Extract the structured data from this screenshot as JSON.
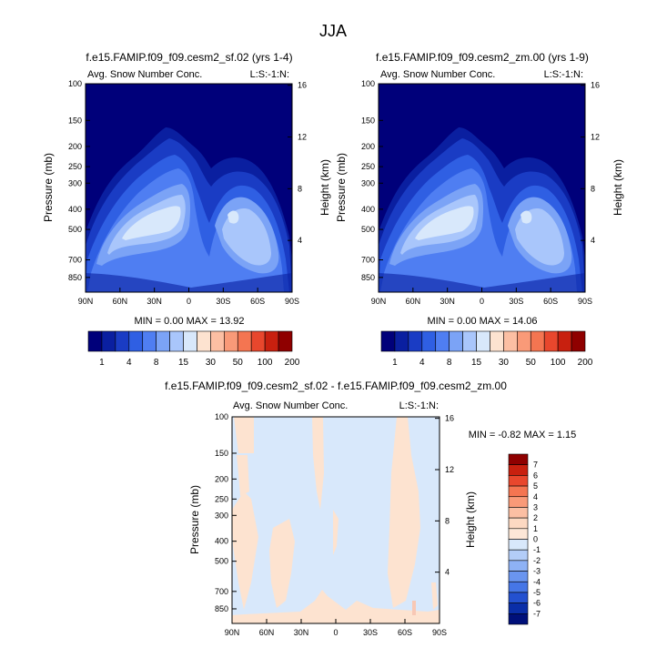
{
  "figure": {
    "title": "JJA"
  },
  "panels": [
    {
      "title": "f.e15.FAMIP.f09_f09.cesm2_sf.02 (yrs 1-4)",
      "field_label": "Avg. Snow Number Conc.",
      "corner_label": "L:S:-1:N:",
      "ylabel": "Pressure (mb)",
      "ylabel_right": "Height (km)",
      "stats": "MIN =  0.00  MAX = 13.92"
    },
    {
      "title": "f.e15.FAMIP.f09_f09.cesm2_zm.00 (yrs 1-9)",
      "field_label": "Avg. Snow Number Conc.",
      "corner_label": "L:S:-1:N:",
      "ylabel": "Pressure (mb)",
      "ylabel_right": "Height (km)",
      "stats": "MIN =  0.00  MAX = 14.06"
    },
    {
      "title": "f.e15.FAMIP.f09_f09.cesm2_sf.02 - f.e15.FAMIP.f09_f09.cesm2_zm.00",
      "field_label": "Avg. Snow Number Conc.",
      "corner_label": "L:S:-1:N:",
      "ylabel": "Pressure (mb)",
      "ylabel_right": "Height (km)",
      "stats": "MIN = -0.82  MAX =  1.15"
    }
  ],
  "axes": {
    "x_ticks": [
      "90N",
      "60N",
      "30N",
      "0",
      "30S",
      "60S",
      "90S"
    ],
    "y_ticks": [
      "100",
      "150",
      "200",
      "250",
      "300",
      "400",
      "500",
      "700",
      "850"
    ],
    "y_tick_values": [
      100,
      150,
      200,
      250,
      300,
      400,
      500,
      700,
      850
    ],
    "height_ticks": [
      "16",
      "12",
      "8",
      "4"
    ],
    "height_tick_values": [
      16,
      12,
      8,
      4
    ],
    "y_log_scale": true,
    "ylim": [
      100,
      1000
    ]
  },
  "colorbar_top": {
    "labels": [
      "1",
      "4",
      "8",
      "15",
      "30",
      "50",
      "100",
      "200"
    ],
    "colors": [
      "#00007a",
      "#0a1fa0",
      "#1a3cc4",
      "#2f5fe3",
      "#4f7ef2",
      "#7ba3f6",
      "#a9c6fb",
      "#d8e8fb",
      "#fde3d0",
      "#fcbfa3",
      "#f99a78",
      "#f47551",
      "#e8472d",
      "#c8200f",
      "#8f0000"
    ]
  },
  "colorbar_diff": {
    "labels": [
      "7",
      "6",
      "5",
      "4",
      "3",
      "2",
      "1",
      "0",
      "-1",
      "-2",
      "-3",
      "-4",
      "-5",
      "-6",
      "-7"
    ],
    "colors": [
      "#8f0000",
      "#c8200f",
      "#e8472d",
      "#f47551",
      "#f99a78",
      "#fcbfa3",
      "#fdd9c2",
      "#fde7d7",
      "#d8e8fb",
      "#b3cdf8",
      "#8eb2f5",
      "#6a95ef",
      "#4676e6",
      "#2451d0",
      "#0a2ea8",
      "#00107a"
    ]
  },
  "chart_data": [
    {
      "type": "heatmap",
      "title": "f.e15.FAMIP.f09_f09.cesm2_sf.02 (yrs 1-4)",
      "xlabel": "",
      "ylabel": "Pressure (mb)",
      "x": [
        "90N",
        "60N",
        "30N",
        "0",
        "30S",
        "60S",
        "90S"
      ],
      "ylim": [
        100,
        1000
      ],
      "min": 0.0,
      "max": 13.92,
      "levels": [
        1,
        2,
        4,
        6,
        8,
        10,
        15,
        20,
        30,
        40,
        50,
        75,
        100,
        150,
        200
      ]
    },
    {
      "type": "heatmap",
      "title": "f.e15.FAMIP.f09_f09.cesm2_zm.00 (yrs 1-9)",
      "xlabel": "",
      "ylabel": "Pressure (mb)",
      "x": [
        "90N",
        "60N",
        "30N",
        "0",
        "30S",
        "60S",
        "90S"
      ],
      "ylim": [
        100,
        1000
      ],
      "min": 0.0,
      "max": 14.06,
      "levels": [
        1,
        2,
        4,
        6,
        8,
        10,
        15,
        20,
        30,
        40,
        50,
        75,
        100,
        150,
        200
      ]
    },
    {
      "type": "heatmap",
      "title": "f.e15.FAMIP.f09_f09.cesm2_sf.02 - f.e15.FAMIP.f09_f09.cesm2_zm.00",
      "xlabel": "",
      "ylabel": "Pressure (mb)",
      "x": [
        "90N",
        "60N",
        "30N",
        "0",
        "30S",
        "60S",
        "90S"
      ],
      "ylim": [
        100,
        1000
      ],
      "min": -0.82,
      "max": 1.15,
      "levels": [
        -7,
        -6,
        -5,
        -4,
        -3,
        -2,
        -1,
        0,
        1,
        2,
        3,
        4,
        5,
        6,
        7
      ]
    }
  ]
}
